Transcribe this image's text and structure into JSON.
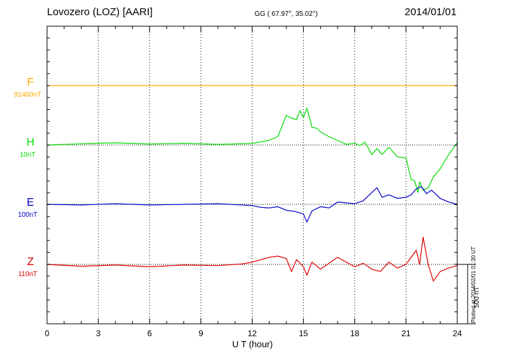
{
  "header": {
    "station": "Lovozero (LOZ)  [AARI]",
    "coords": "GG ( 67.97°,  35.02°)",
    "date": "2014/01/01"
  },
  "plotted_note": "Plotted at 2014/02/01 01:30 UT",
  "colors": {
    "F": "#ffaa00",
    "H": "#00dd00",
    "E": "#0000cc",
    "Z": "#dd0000",
    "grid": "#000000"
  },
  "chart_data": {
    "type": "line",
    "title": "",
    "xlabel": "U T (hour)",
    "ylabel": "",
    "x_ticks": [
      "0",
      "3",
      "6",
      "9",
      "12",
      "15",
      "18",
      "21",
      "24"
    ],
    "xlim": [
      0,
      24
    ],
    "units": "nT",
    "scale_bar": {
      "label": "500 nT",
      "value": 500
    },
    "series": [
      {
        "name": "F",
        "baseline_label": "91460nT",
        "x": [
          0,
          24
        ],
        "values": [
          0,
          0
        ]
      },
      {
        "name": "H",
        "baseline_label": "10nT",
        "x": [
          0,
          2,
          4,
          6,
          8,
          10,
          12,
          13,
          13.5,
          14,
          14.3,
          14.6,
          14.8,
          15,
          15.2,
          15.5,
          15.8,
          16,
          16.5,
          17,
          17.5,
          18,
          18.3,
          18.6,
          19,
          19.3,
          19.6,
          20,
          20.5,
          21,
          21.3,
          21.5,
          21.7,
          21.8,
          22,
          22.3,
          22.6,
          23,
          23.5,
          24
        ],
        "values": [
          0,
          10,
          18,
          8,
          14,
          5,
          12,
          40,
          70,
          250,
          225,
          215,
          290,
          230,
          310,
          150,
          140,
          110,
          70,
          38,
          5,
          15,
          -5,
          25,
          -80,
          -30,
          -80,
          -20,
          -100,
          -110,
          -290,
          -300,
          -400,
          -310,
          -380,
          -360,
          -270,
          -200,
          -80,
          20
        ]
      },
      {
        "name": "E",
        "baseline_label": "100nT",
        "x": [
          0,
          2,
          4,
          6,
          8,
          10,
          12,
          12.5,
          13,
          13.5,
          14,
          14.5,
          15,
          15.2,
          15.5,
          16,
          16.5,
          17,
          18,
          18.5,
          19,
          19.3,
          19.6,
          20,
          20.5,
          21,
          21.3,
          21.6,
          21.9,
          22.2,
          22.5,
          23,
          23.5,
          24
        ],
        "values": [
          0,
          -5,
          5,
          -5,
          0,
          5,
          -10,
          -25,
          -30,
          -20,
          -50,
          -60,
          -80,
          -150,
          -55,
          -20,
          -30,
          20,
          5,
          30,
          100,
          140,
          60,
          80,
          50,
          60,
          80,
          130,
          150,
          90,
          120,
          50,
          20,
          0
        ]
      },
      {
        "name": "Z",
        "baseline_label": "110nT",
        "x": [
          0,
          2,
          4,
          6,
          8,
          10,
          11.5,
          12,
          12.5,
          13,
          13.5,
          14,
          14.3,
          14.6,
          15,
          15.2,
          15.5,
          16,
          16.5,
          17,
          17.5,
          18,
          18.5,
          19,
          19.5,
          20,
          20.5,
          21,
          21.2,
          21.6,
          21.8,
          22,
          22.3,
          22.6,
          23,
          23.5,
          24
        ],
        "values": [
          0,
          -15,
          -5,
          -20,
          -5,
          -10,
          5,
          20,
          40,
          60,
          70,
          50,
          -60,
          40,
          -20,
          -90,
          20,
          -40,
          10,
          60,
          20,
          -20,
          10,
          -40,
          -60,
          20,
          -30,
          0,
          40,
          120,
          0,
          230,
          0,
          -140,
          -60,
          -30,
          -10
        ]
      }
    ]
  }
}
